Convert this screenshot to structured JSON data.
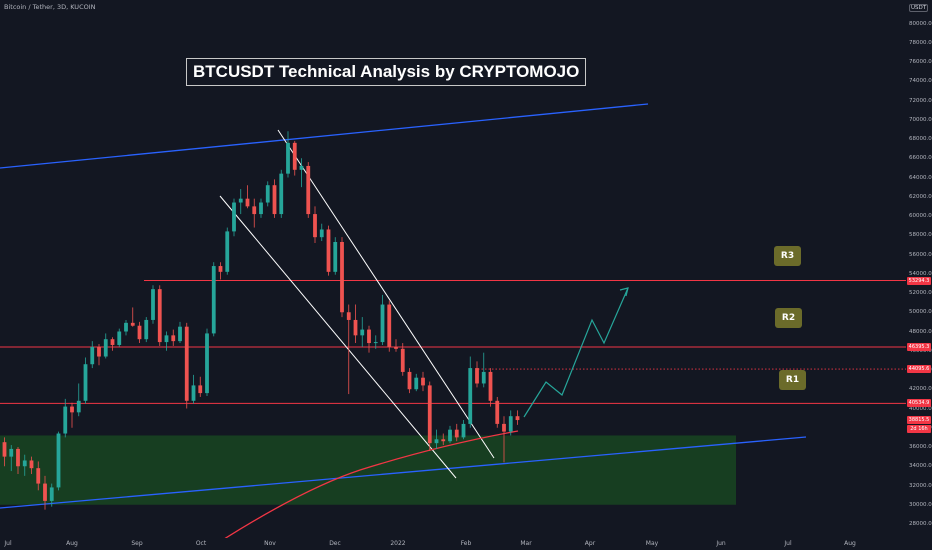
{
  "header": {
    "symbol": "Bitcoin / Tether, 3D, KUCOIN",
    "title": "BTCUSDT Technical Analysis by CRYPTOMOJO",
    "currency": "USDT"
  },
  "callouts": [
    {
      "label": "R3",
      "price": 53294.3
    },
    {
      "label": "R2",
      "price": 46395.3
    },
    {
      "label": "R1",
      "price": 40534.9
    }
  ],
  "price_tags": [
    {
      "text": "53294.3",
      "price": 53294.3,
      "color": "#f23645"
    },
    {
      "text": "46395.3",
      "price": 46395.3,
      "color": "#f23645"
    },
    {
      "text": "44095.6",
      "price": 44095.6,
      "color": "#f23645"
    },
    {
      "text": "40534.9",
      "price": 40534.9,
      "color": "#f23645"
    },
    {
      "text": "38815.5",
      "price": 38815.5,
      "color": "#f23645"
    },
    {
      "text": "2d 16h",
      "price": 37900,
      "color": "#f23645"
    }
  ],
  "colors": {
    "background": "#131722",
    "up": "#26a69a",
    "down": "#ef5350",
    "channel": "#2962ff",
    "resistance": "#f23645",
    "support_zone": "#1b5e20",
    "moving_average": "#f23645",
    "projection": "#26a69a",
    "wedge": "#ffffff"
  },
  "chart_data": {
    "type": "candlestick",
    "title": "BTCUSDT Technical Analysis by CRYPTOMOJO",
    "y_axis": {
      "range": [
        27000,
        81500
      ],
      "ticks": [
        "28000.0",
        "30000.0",
        "32000.0",
        "34000.0",
        "36000.0",
        "38000.0",
        "40000.0",
        "42000.0",
        "44000.0",
        "46000.0",
        "48000.0",
        "50000.0",
        "52000.0",
        "54000.0",
        "56000.0",
        "58000.0",
        "60000.0",
        "62000.0",
        "64000.0",
        "66000.0",
        "68000.0",
        "70000.0",
        "72000.0",
        "74000.0",
        "76000.0",
        "78000.0",
        "80000.0"
      ]
    },
    "x_axis": {
      "ticks": [
        "Jul",
        "Aug",
        "Sep",
        "Oct",
        "Nov",
        "Dec",
        "2022",
        "Feb",
        "Mar",
        "Apr",
        "May",
        "Jun",
        "Jul",
        "Aug"
      ]
    },
    "resistance_levels": [
      {
        "name": "R3",
        "value": 53294.3
      },
      {
        "name": "R2",
        "value": 46395.3
      },
      {
        "name": "R1",
        "value": 40534.9
      }
    ],
    "dotted_level": 44095.6,
    "support_zone": {
      "from": 30000,
      "to": 37200
    },
    "candles": [
      {
        "o": 36500,
        "h": 37000,
        "l": 34000,
        "c": 35000
      },
      {
        "o": 35000,
        "h": 36200,
        "l": 33500,
        "c": 35800
      },
      {
        "o": 35800,
        "h": 36000,
        "l": 33200,
        "c": 34000
      },
      {
        "o": 34000,
        "h": 35200,
        "l": 33000,
        "c": 34600
      },
      {
        "o": 34600,
        "h": 35000,
        "l": 33200,
        "c": 33800
      },
      {
        "o": 33800,
        "h": 34500,
        "l": 31500,
        "c": 32200
      },
      {
        "o": 32200,
        "h": 33000,
        "l": 29500,
        "c": 30400
      },
      {
        "o": 30400,
        "h": 32200,
        "l": 29800,
        "c": 31800
      },
      {
        "o": 31800,
        "h": 37600,
        "l": 31500,
        "c": 37400
      },
      {
        "o": 37400,
        "h": 41000,
        "l": 37000,
        "c": 40200
      },
      {
        "o": 40200,
        "h": 40600,
        "l": 38000,
        "c": 39600
      },
      {
        "o": 39600,
        "h": 42600,
        "l": 39200,
        "c": 40800
      },
      {
        "o": 40800,
        "h": 45300,
        "l": 40500,
        "c": 44600
      },
      {
        "o": 44600,
        "h": 47000,
        "l": 44200,
        "c": 46400
      },
      {
        "o": 46400,
        "h": 46700,
        "l": 44500,
        "c": 45400
      },
      {
        "o": 45400,
        "h": 47800,
        "l": 45200,
        "c": 47200
      },
      {
        "o": 47200,
        "h": 47400,
        "l": 46000,
        "c": 46600
      },
      {
        "o": 46600,
        "h": 48300,
        "l": 46400,
        "c": 48000
      },
      {
        "o": 48000,
        "h": 49200,
        "l": 47600,
        "c": 48900
      },
      {
        "o": 48900,
        "h": 50500,
        "l": 48500,
        "c": 48600
      },
      {
        "o": 48600,
        "h": 49000,
        "l": 46800,
        "c": 47200
      },
      {
        "o": 47200,
        "h": 49500,
        "l": 46900,
        "c": 49200
      },
      {
        "o": 49200,
        "h": 52800,
        "l": 48800,
        "c": 52400
      },
      {
        "o": 52400,
        "h": 52800,
        "l": 46500,
        "c": 46900
      },
      {
        "o": 46900,
        "h": 48000,
        "l": 46000,
        "c": 47600
      },
      {
        "o": 47600,
        "h": 48200,
        "l": 46500,
        "c": 47000
      },
      {
        "o": 47000,
        "h": 49000,
        "l": 46800,
        "c": 48500
      },
      {
        "o": 48500,
        "h": 48900,
        "l": 40000,
        "c": 40800
      },
      {
        "o": 40800,
        "h": 43500,
        "l": 40500,
        "c": 42400
      },
      {
        "o": 42400,
        "h": 43300,
        "l": 41200,
        "c": 41600
      },
      {
        "o": 41600,
        "h": 48300,
        "l": 41300,
        "c": 47800
      },
      {
        "o": 47800,
        "h": 55200,
        "l": 47500,
        "c": 54800
      },
      {
        "o": 54800,
        "h": 55200,
        "l": 53400,
        "c": 54200
      },
      {
        "o": 54200,
        "h": 58800,
        "l": 53900,
        "c": 58400
      },
      {
        "o": 58400,
        "h": 61800,
        "l": 57900,
        "c": 61400
      },
      {
        "o": 61400,
        "h": 62800,
        "l": 60200,
        "c": 61800
      },
      {
        "o": 61800,
        "h": 63200,
        "l": 60800,
        "c": 61000
      },
      {
        "o": 61000,
        "h": 61800,
        "l": 58800,
        "c": 60200
      },
      {
        "o": 60200,
        "h": 61800,
        "l": 59800,
        "c": 61400
      },
      {
        "o": 61400,
        "h": 63600,
        "l": 61000,
        "c": 63200
      },
      {
        "o": 63200,
        "h": 63800,
        "l": 59800,
        "c": 60200
      },
      {
        "o": 60200,
        "h": 64800,
        "l": 59800,
        "c": 64400
      },
      {
        "o": 64400,
        "h": 68800,
        "l": 64000,
        "c": 67600
      },
      {
        "o": 67600,
        "h": 67800,
        "l": 64200,
        "c": 64800
      },
      {
        "o": 64800,
        "h": 66000,
        "l": 63000,
        "c": 65200
      },
      {
        "o": 65200,
        "h": 65600,
        "l": 59800,
        "c": 60200
      },
      {
        "o": 60200,
        "h": 61000,
        "l": 57200,
        "c": 57800
      },
      {
        "o": 57800,
        "h": 59200,
        "l": 57400,
        "c": 58600
      },
      {
        "o": 58600,
        "h": 59000,
        "l": 53800,
        "c": 54200
      },
      {
        "o": 54200,
        "h": 57800,
        "l": 53900,
        "c": 57300
      },
      {
        "o": 57300,
        "h": 57800,
        "l": 49500,
        "c": 50000
      },
      {
        "o": 50000,
        "h": 50800,
        "l": 41500,
        "c": 49200
      },
      {
        "o": 49200,
        "h": 50800,
        "l": 46800,
        "c": 47600
      },
      {
        "o": 47600,
        "h": 49500,
        "l": 46400,
        "c": 48200
      },
      {
        "o": 48200,
        "h": 48600,
        "l": 45800,
        "c": 46800
      },
      {
        "o": 46800,
        "h": 47600,
        "l": 46200,
        "c": 46900
      },
      {
        "o": 46900,
        "h": 51800,
        "l": 46600,
        "c": 50800
      },
      {
        "o": 50800,
        "h": 51200,
        "l": 45900,
        "c": 46400
      },
      {
        "o": 46400,
        "h": 47200,
        "l": 45900,
        "c": 46200
      },
      {
        "o": 46200,
        "h": 46800,
        "l": 43400,
        "c": 43800
      },
      {
        "o": 43800,
        "h": 44200,
        "l": 41600,
        "c": 42000
      },
      {
        "o": 42000,
        "h": 43600,
        "l": 41800,
        "c": 43200
      },
      {
        "o": 43200,
        "h": 43800,
        "l": 41800,
        "c": 42400
      },
      {
        "o": 42400,
        "h": 42800,
        "l": 35600,
        "c": 36400
      },
      {
        "o": 36400,
        "h": 37800,
        "l": 35800,
        "c": 36800
      },
      {
        "o": 36800,
        "h": 37400,
        "l": 36200,
        "c": 36600
      },
      {
        "o": 36600,
        "h": 38200,
        "l": 36400,
        "c": 37800
      },
      {
        "o": 37800,
        "h": 38400,
        "l": 36600,
        "c": 37000
      },
      {
        "o": 37000,
        "h": 38800,
        "l": 36800,
        "c": 38400
      },
      {
        "o": 38400,
        "h": 45400,
        "l": 38000,
        "c": 44200
      },
      {
        "o": 44200,
        "h": 44900,
        "l": 42200,
        "c": 42600
      },
      {
        "o": 42600,
        "h": 45800,
        "l": 42200,
        "c": 43800
      },
      {
        "o": 43800,
        "h": 44200,
        "l": 40200,
        "c": 40800
      },
      {
        "o": 40800,
        "h": 41200,
        "l": 38000,
        "c": 38400
      },
      {
        "o": 38400,
        "h": 39200,
        "l": 34400,
        "c": 37600
      },
      {
        "o": 37600,
        "h": 39800,
        "l": 37200,
        "c": 39200
      },
      {
        "o": 39200,
        "h": 39800,
        "l": 38300,
        "c": 38800
      }
    ]
  }
}
